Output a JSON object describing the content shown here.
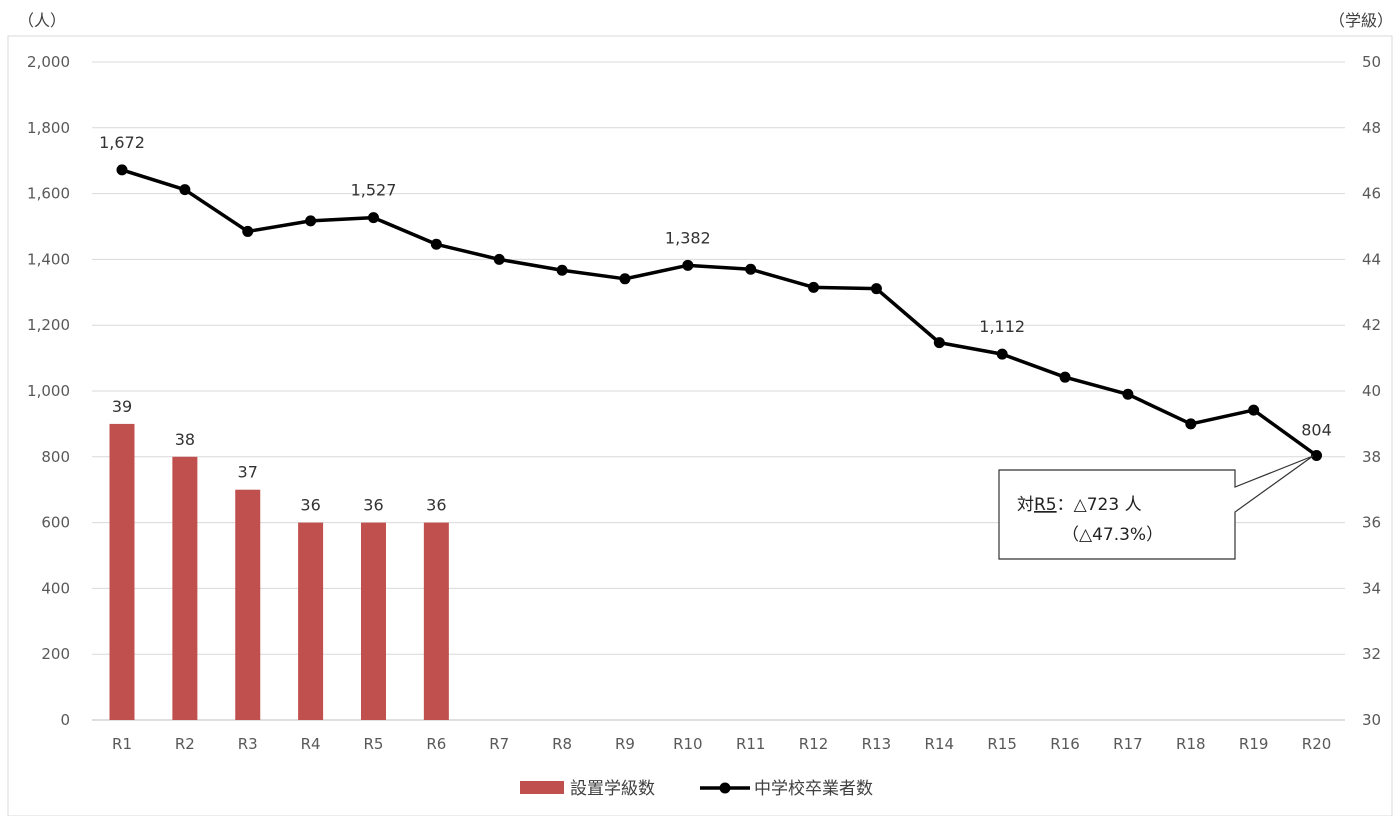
{
  "chart_data": {
    "type": "bar+line",
    "categories": [
      "R1",
      "R2",
      "R3",
      "R4",
      "R5",
      "R6",
      "R7",
      "R8",
      "R9",
      "R10",
      "R11",
      "R12",
      "R13",
      "R14",
      "R15",
      "R16",
      "R17",
      "R18",
      "R19",
      "R20"
    ],
    "series": [
      {
        "name": "設置学級数",
        "type": "bar",
        "axis": "right",
        "color": "#c0504d",
        "values": [
          39,
          38,
          37,
          36,
          36,
          36,
          null,
          null,
          null,
          null,
          null,
          null,
          null,
          null,
          null,
          null,
          null,
          null,
          null,
          null
        ],
        "data_labels": [
          "39",
          "38",
          "37",
          "36",
          "36",
          "36"
        ]
      },
      {
        "name": "中学校卒業者数",
        "type": "line",
        "axis": "left",
        "color": "#000000",
        "values": [
          1672,
          1612,
          1485,
          1517,
          1527,
          1446,
          1400,
          1367,
          1341,
          1382,
          1370,
          1315,
          1311,
          1147,
          1112,
          1042,
          990,
          900,
          942,
          804
        ],
        "labeled_points": [
          {
            "index": 0,
            "text": "1,672"
          },
          {
            "index": 4,
            "text": "1,527"
          },
          {
            "index": 9,
            "text": "1,382"
          },
          {
            "index": 14,
            "text": "1,112"
          },
          {
            "index": 19,
            "text": "804"
          }
        ]
      }
    ],
    "left_axis": {
      "unit": "（人）",
      "ylim": [
        0,
        2000
      ],
      "ticks": [
        "0",
        "200",
        "400",
        "600",
        "800",
        "1,000",
        "1,200",
        "1,400",
        "1,600",
        "1,800",
        "2,000"
      ]
    },
    "right_axis": {
      "unit": "（学級）",
      "ylim": [
        30,
        50
      ],
      "ticks": [
        "30",
        "32",
        "34",
        "36",
        "38",
        "40",
        "42",
        "44",
        "46",
        "48",
        "50"
      ]
    },
    "grid": true,
    "legend_position": "bottom",
    "annotation": {
      "line1_prefix": "対",
      "line1_ref": "R5",
      "line1_rest": "：△723 人",
      "line2": "（△47.3%）"
    }
  }
}
